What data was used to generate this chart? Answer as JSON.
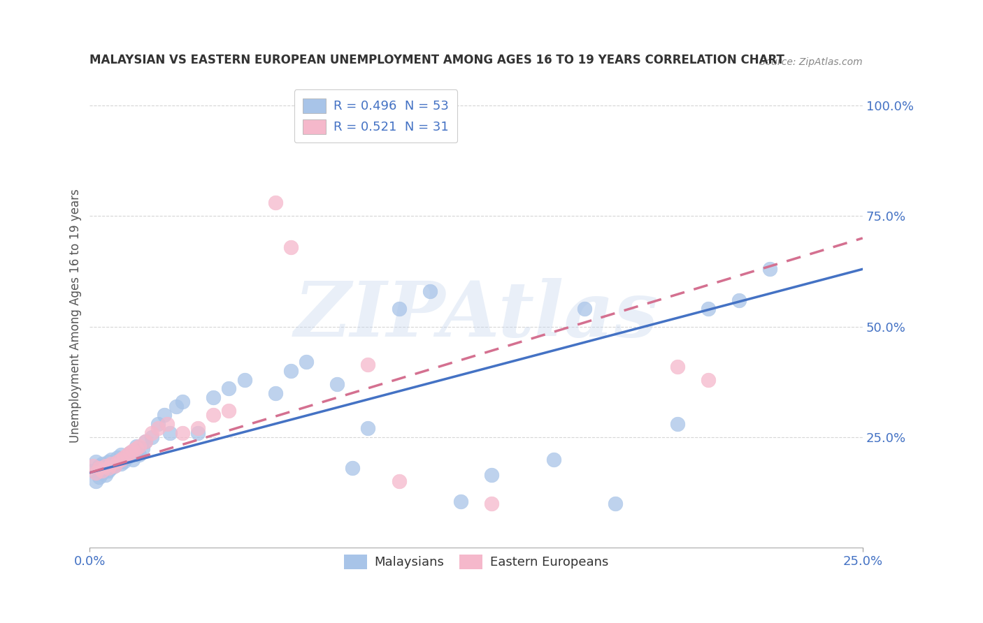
{
  "title": "MALAYSIAN VS EASTERN EUROPEAN UNEMPLOYMENT AMONG AGES 16 TO 19 YEARS CORRELATION CHART",
  "source": "Source: ZipAtlas.com",
  "ylabel": "Unemployment Among Ages 16 to 19 years",
  "xlim": [
    0.0,
    0.25
  ],
  "ylim": [
    0.0,
    1.05
  ],
  "yticks": [
    0.25,
    0.5,
    0.75,
    1.0
  ],
  "ytick_labels": [
    "25.0%",
    "50.0%",
    "75.0%",
    "100.0%"
  ],
  "xticks": [
    0.0,
    0.25
  ],
  "xtick_labels": [
    "0.0%",
    "25.0%"
  ],
  "malaysian_R": 0.496,
  "malaysian_N": 53,
  "eastern_R": 0.521,
  "eastern_N": 31,
  "blue_color": "#a8c4e8",
  "pink_color": "#f5b8cb",
  "blue_line_color": "#4472c4",
  "pink_line_color": "#d47090",
  "title_color": "#333333",
  "axis_label_color": "#555555",
  "tick_color": "#4472c4",
  "grid_color": "#bbbbbb",
  "watermark": "ZIPAtlas",
  "watermark_color": "#c8d8ee",
  "malaysian_x": [
    0.001,
    0.002,
    0.002,
    0.003,
    0.003,
    0.004,
    0.004,
    0.005,
    0.005,
    0.006,
    0.006,
    0.007,
    0.007,
    0.008,
    0.009,
    0.01,
    0.01,
    0.011,
    0.012,
    0.013,
    0.014,
    0.015,
    0.015,
    0.016,
    0.017,
    0.018,
    0.02,
    0.022,
    0.024,
    0.026,
    0.028,
    0.03,
    0.035,
    0.04,
    0.045,
    0.05,
    0.06,
    0.065,
    0.07,
    0.08,
    0.085,
    0.09,
    0.1,
    0.11,
    0.12,
    0.13,
    0.15,
    0.16,
    0.17,
    0.19,
    0.2,
    0.21,
    0.22
  ],
  "malaysian_y": [
    0.175,
    0.15,
    0.195,
    0.16,
    0.185,
    0.17,
    0.19,
    0.165,
    0.185,
    0.175,
    0.195,
    0.18,
    0.2,
    0.185,
    0.205,
    0.19,
    0.21,
    0.195,
    0.205,
    0.215,
    0.2,
    0.22,
    0.23,
    0.21,
    0.225,
    0.24,
    0.25,
    0.28,
    0.3,
    0.26,
    0.32,
    0.33,
    0.26,
    0.34,
    0.36,
    0.38,
    0.35,
    0.4,
    0.42,
    0.37,
    0.18,
    0.27,
    0.54,
    0.58,
    0.105,
    0.165,
    0.2,
    0.54,
    0.1,
    0.28,
    0.54,
    0.56,
    0.63
  ],
  "eastern_x": [
    0.001,
    0.002,
    0.003,
    0.004,
    0.005,
    0.006,
    0.007,
    0.008,
    0.009,
    0.01,
    0.011,
    0.012,
    0.013,
    0.014,
    0.015,
    0.016,
    0.018,
    0.02,
    0.022,
    0.025,
    0.03,
    0.035,
    0.04,
    0.045,
    0.06,
    0.065,
    0.09,
    0.1,
    0.13,
    0.19,
    0.2
  ],
  "eastern_y": [
    0.185,
    0.17,
    0.18,
    0.175,
    0.185,
    0.18,
    0.19,
    0.185,
    0.195,
    0.2,
    0.205,
    0.21,
    0.215,
    0.22,
    0.225,
    0.23,
    0.24,
    0.26,
    0.27,
    0.28,
    0.26,
    0.27,
    0.3,
    0.31,
    0.78,
    0.68,
    0.415,
    0.15,
    0.1,
    0.41,
    0.38
  ]
}
